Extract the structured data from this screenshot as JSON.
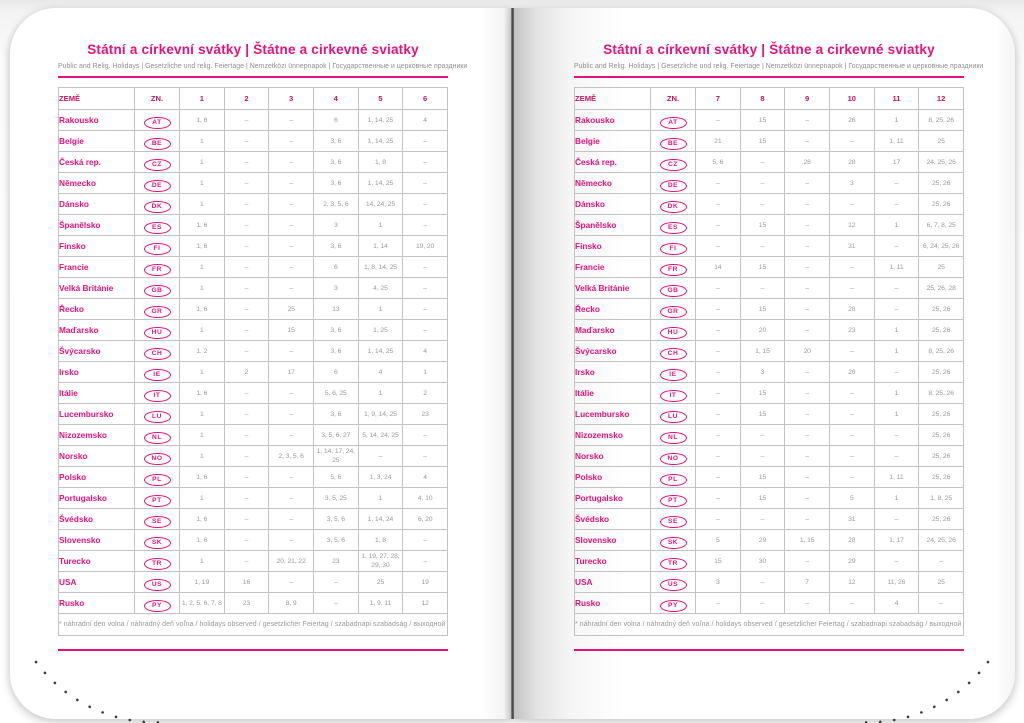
{
  "accent_color": "#e5127d",
  "page": {
    "title": "Státní a církevní svátky | Štátne a cirkevné sviatky",
    "subtitle": "Public and Relig. Holidays | Gesetzliche und relig. Feiertage | Nemzetközi ünnepnapok | Государственные и церковные праздники",
    "footnote": "* náhradní den volna / náhradný deň voľna / holidays observed / gesetzlicher Feiertag / szabadnapi szabadság / выходной день",
    "col_country": "ZEMĚ",
    "col_code": "ZN."
  },
  "left_months": [
    "1",
    "2",
    "3",
    "4",
    "5",
    "6"
  ],
  "right_months": [
    "7",
    "8",
    "9",
    "10",
    "11",
    "12"
  ],
  "countries": [
    {
      "name": "Rakousko",
      "code": "AT",
      "months": [
        "1, 6",
        "–",
        "–",
        "6",
        "1, 14, 25",
        "4",
        "–",
        "15",
        "–",
        "26",
        "1",
        "8, 25, 26"
      ]
    },
    {
      "name": "Belgie",
      "code": "BE",
      "months": [
        "1",
        "–",
        "–",
        "3, 6",
        "1, 14, 25",
        "–",
        "21",
        "15",
        "–",
        "–",
        "1, 11",
        "25"
      ]
    },
    {
      "name": "Česká rep.",
      "code": "CZ",
      "months": [
        "1",
        "–",
        "–",
        "3, 6",
        "1, 8",
        "–",
        "5, 6",
        "–",
        "28",
        "28",
        "17",
        "24, 25, 26"
      ]
    },
    {
      "name": "Německo",
      "code": "DE",
      "months": [
        "1",
        "–",
        "–",
        "3, 6",
        "1, 14, 25",
        "–",
        "–",
        "–",
        "–",
        "3",
        "–",
        "25, 26"
      ]
    },
    {
      "name": "Dánsko",
      "code": "DK",
      "months": [
        "1",
        "–",
        "–",
        "2, 3, 5, 6",
        "14, 24, 25",
        "–",
        "–",
        "–",
        "–",
        "–",
        "–",
        "25, 26"
      ]
    },
    {
      "name": "Španělsko",
      "code": "ES",
      "months": [
        "1, 6",
        "–",
        "–",
        "3",
        "1",
        "–",
        "–",
        "15",
        "–",
        "12",
        "1",
        "6, 7, 8, 25"
      ]
    },
    {
      "name": "Finsko",
      "code": "FI",
      "months": [
        "1, 6",
        "–",
        "–",
        "3, 6",
        "1, 14",
        "19, 20",
        "–",
        "–",
        "–",
        "31",
        "–",
        "6, 24, 25, 26"
      ]
    },
    {
      "name": "Francie",
      "code": "FR",
      "months": [
        "1",
        "–",
        "–",
        "6",
        "1, 8, 14, 25",
        "–",
        "14",
        "15",
        "–",
        "–",
        "1, 11",
        "25"
      ]
    },
    {
      "name": "Velká Británie",
      "code": "GB",
      "months": [
        "1",
        "–",
        "–",
        "3",
        "4, 25",
        "–",
        "–",
        "–",
        "–",
        "–",
        "–",
        "25, 26, 28"
      ]
    },
    {
      "name": "Řecko",
      "code": "GR",
      "months": [
        "1, 6",
        "–",
        "25",
        "13",
        "1",
        "–",
        "–",
        "15",
        "–",
        "28",
        "–",
        "25, 26"
      ]
    },
    {
      "name": "Maďarsko",
      "code": "HU",
      "months": [
        "1",
        "–",
        "15",
        "3, 6",
        "1, 25",
        "–",
        "–",
        "20",
        "–",
        "23",
        "1",
        "25, 26"
      ]
    },
    {
      "name": "Švýcarsko",
      "code": "CH",
      "months": [
        "1, 2",
        "–",
        "–",
        "3, 6",
        "1, 14, 25",
        "4",
        "–",
        "1, 15",
        "20",
        "–",
        "1",
        "8, 25, 26"
      ]
    },
    {
      "name": "Irsko",
      "code": "IE",
      "months": [
        "1",
        "2",
        "17",
        "6",
        "4",
        "1",
        "–",
        "3",
        "–",
        "26",
        "–",
        "25, 26"
      ]
    },
    {
      "name": "Itálie",
      "code": "IT",
      "months": [
        "1, 6",
        "–",
        "–",
        "5, 6, 25",
        "1",
        "2",
        "–",
        "15",
        "–",
        "–",
        "1",
        "8, 25, 26"
      ]
    },
    {
      "name": "Lucembursko",
      "code": "LU",
      "months": [
        "1",
        "–",
        "–",
        "3, 6",
        "1, 9, 14, 25",
        "23",
        "–",
        "15",
        "–",
        "–",
        "1",
        "25, 26"
      ]
    },
    {
      "name": "Nizozemsko",
      "code": "NL",
      "months": [
        "1",
        "–",
        "–",
        "3, 5, 6, 27",
        "5, 14, 24, 25",
        "–",
        "–",
        "–",
        "–",
        "–",
        "–",
        "25, 26"
      ]
    },
    {
      "name": "Norsko",
      "code": "NO",
      "months": [
        "1",
        "–",
        "2, 3, 5, 6",
        "1, 14, 17, 24, 25",
        "–",
        "–",
        "–",
        "–",
        "–",
        "–",
        "–",
        "25, 26"
      ]
    },
    {
      "name": "Polsko",
      "code": "PL",
      "months": [
        "1, 6",
        "–",
        "–",
        "5, 6",
        "1, 3, 24",
        "4",
        "–",
        "15",
        "–",
        "–",
        "1, 11",
        "25, 26"
      ]
    },
    {
      "name": "Portugalsko",
      "code": "PT",
      "months": [
        "1",
        "–",
        "–",
        "3, 5, 25",
        "1",
        "4, 10",
        "–",
        "15",
        "–",
        "5",
        "1",
        "1, 8, 25"
      ]
    },
    {
      "name": "Švédsko",
      "code": "SE",
      "months": [
        "1, 6",
        "–",
        "–",
        "3, 5, 6",
        "1, 14, 24",
        "6, 20",
        "–",
        "–",
        "–",
        "31",
        "–",
        "25, 26"
      ]
    },
    {
      "name": "Slovensko",
      "code": "SK",
      "months": [
        "1, 6",
        "–",
        "–",
        "3, 5, 6",
        "1, 8",
        "–",
        "5",
        "29",
        "1, 15",
        "28",
        "1, 17",
        "24, 25, 26"
      ]
    },
    {
      "name": "Turecko",
      "code": "TR",
      "months": [
        "1",
        "–",
        "20, 21, 22",
        "23",
        "1, 19, 27, 28, 29, 30",
        "–",
        "15",
        "30",
        "–",
        "29",
        "–",
        "–"
      ]
    },
    {
      "name": "USA",
      "code": "US",
      "months": [
        "1, 19",
        "16",
        "–",
        "–",
        "25",
        "19",
        "3",
        "–",
        "7",
        "12",
        "11, 26",
        "25"
      ]
    },
    {
      "name": "Rusko",
      "code": "PY",
      "months": [
        "1, 2, 5, 6, 7, 8",
        "23",
        "8, 9",
        "–",
        "1, 9, 11",
        "12",
        "–",
        "–",
        "–",
        "–",
        "4",
        "–"
      ]
    }
  ]
}
